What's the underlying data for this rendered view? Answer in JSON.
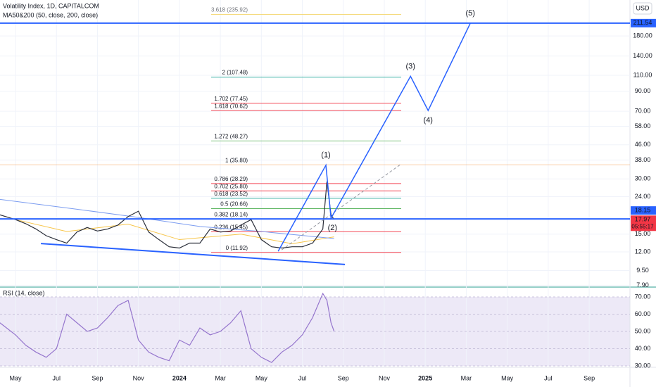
{
  "header": {
    "title": "Volatility Index, 1D, CAPITALCOM",
    "indicator": "MA50&200 (50, close, 200, close)",
    "rsi_title": "RSI (14, close)",
    "currency": "USD",
    "countdown": "05:55:17"
  },
  "chart_data": {
    "type": "line",
    "log_scale": true,
    "grid": true,
    "ylim": [
      7.72,
      282.7
    ],
    "xlim": [
      -0.756,
      29.99
    ],
    "yticks": [
      {
        "value": 180,
        "label": "180.00"
      },
      {
        "value": 140,
        "label": "140.00"
      },
      {
        "value": 110,
        "label": "110.00"
      },
      {
        "value": 90,
        "label": "90.00"
      },
      {
        "value": 70,
        "label": "70.00"
      },
      {
        "value": 58,
        "label": "58.00"
      },
      {
        "value": 46,
        "label": "46.00"
      },
      {
        "value": 38,
        "label": "38.00"
      },
      {
        "value": 30,
        "label": "30.00"
      },
      {
        "value": 24,
        "label": "24.00"
      },
      {
        "value": 15,
        "label": "15.00"
      },
      {
        "value": 12,
        "label": "12.00"
      },
      {
        "value": 9.5,
        "label": "9.50"
      },
      {
        "value": 7.9,
        "label": "7.90"
      }
    ],
    "xticks": [
      {
        "value": 0,
        "label": "May"
      },
      {
        "value": 2,
        "label": "Jul"
      },
      {
        "value": 4,
        "label": "Sep"
      },
      {
        "value": 6,
        "label": "Nov"
      },
      {
        "value": 8,
        "label": "2024"
      },
      {
        "value": 10,
        "label": "Mar"
      },
      {
        "value": 12,
        "label": "May"
      },
      {
        "value": 14,
        "label": "Jul"
      },
      {
        "value": 16,
        "label": "Sep"
      },
      {
        "value": 18,
        "label": "Nov"
      },
      {
        "value": 20,
        "label": "2025"
      },
      {
        "value": 22,
        "label": "Mar"
      },
      {
        "value": 24,
        "label": "May"
      },
      {
        "value": 26,
        "label": "Jul"
      },
      {
        "value": 28,
        "label": "Sep"
      }
    ],
    "price": {
      "color": "#2a2e39",
      "x": [
        -0.76,
        0,
        0.5,
        1,
        1.5,
        2,
        2.5,
        3,
        3.5,
        4,
        4.5,
        5,
        5.5,
        6,
        6.5,
        7,
        7.5,
        8,
        8.5,
        9,
        9.5,
        10,
        10.5,
        11,
        11.5,
        12,
        12.5,
        13,
        13.5,
        14,
        14.5,
        15,
        15.2,
        15.4,
        15.55
      ],
      "values": [
        19.1,
        18.0,
        17.1,
        16.0,
        14.7,
        14.0,
        13.4,
        15.4,
        16.3,
        15.6,
        16.0,
        16.8,
        18.7,
        20.0,
        15.4,
        14.0,
        12.8,
        12.6,
        13.4,
        13.4,
        16.0,
        15.4,
        15.6,
        16.8,
        18.0,
        14.0,
        12.8,
        12.6,
        12.8,
        12.8,
        13.4,
        16.0,
        29.0,
        19.1,
        18.0
      ]
    },
    "moving_averages": [
      {
        "color": "#f7c548",
        "x": [
          0,
          2.5,
          5.5,
          8,
          11,
          13.5,
          15.55
        ],
        "values": [
          18.0,
          15.5,
          17.0,
          14.0,
          15.0,
          13.3,
          14.5
        ]
      },
      {
        "color": "#7b9cf0",
        "x": [
          -0.76,
          3,
          6,
          9,
          12,
          15.55
        ],
        "values": [
          23.2,
          20.5,
          18.5,
          16.5,
          15.5,
          14.2
        ]
      }
    ],
    "fib_levels": [
      {
        "label": "3.618 (235.92)",
        "value": 235.92,
        "color": "#f5d76e"
      },
      {
        "label": "2 (107.48)",
        "value": 107.48,
        "color": "#22a699"
      },
      {
        "label": "1.702 (77.45)",
        "value": 77.45,
        "color": "#f23645"
      },
      {
        "label": "1.618 (70.62)",
        "value": 70.62,
        "color": "#f23645"
      },
      {
        "label": "1.272 (48.27)",
        "value": 48.27,
        "color": "#7ec47e"
      },
      {
        "label": "1 (35.80)",
        "value": 35.8,
        "color": "#f5a25d"
      },
      {
        "label": "0.786 (28.29)",
        "value": 28.29,
        "color": "#f23645"
      },
      {
        "label": "0.702 (25.80)",
        "value": 25.8,
        "color": "#f23645"
      },
      {
        "label": "0.618 (23.52)",
        "value": 23.52,
        "color": "#22a699"
      },
      {
        "label": "0.5 (20.66)",
        "value": 20.66,
        "color": "#4caf50"
      },
      {
        "label": "0.382 (18.14)",
        "value": 18.14,
        "color": "#f23645"
      },
      {
        "label": "0.236 (15.45)",
        "value": 15.45,
        "color": "#f23645"
      },
      {
        "label": "0 (11.92)",
        "value": 11.92,
        "color": "#f23645"
      }
    ],
    "wave": {
      "color": "#2962ff",
      "x": [
        12.82,
        15.15,
        15.4,
        19.28,
        20.14,
        22.2
      ],
      "values": [
        12.1,
        35.6,
        18.3,
        108.6,
        70.7,
        211.4
      ],
      "labels": [
        null,
        "(1)",
        "(2)",
        "(3)",
        "(4)",
        "(5)"
      ]
    },
    "support": {
      "color": "#2962ff",
      "x": [
        1.24,
        16.08
      ],
      "values": [
        13.33,
        10.25
      ]
    },
    "trend": {
      "color": "#9598a1",
      "x": [
        12.99,
        18.83
      ],
      "values": [
        12.3,
        36.2
      ]
    },
    "price_labels": [
      {
        "value": 211.54,
        "color": "#2962ff"
      },
      {
        "value": 18.15,
        "color": "#2962ff"
      },
      {
        "value": 17.97,
        "color": "#f23645"
      }
    ],
    "rsi": {
      "color": "#9575cd",
      "ylim": [
        29.2,
        75.7
      ],
      "yticks": [
        {
          "value": 70,
          "label": "70.00"
        },
        {
          "value": 60,
          "label": "60.00"
        },
        {
          "value": 50,
          "label": "50.00"
        },
        {
          "value": 40,
          "label": "40.00"
        },
        {
          "value": 30,
          "label": "30.00"
        }
      ],
      "values": [
        55,
        48,
        42,
        38,
        35,
        40,
        60,
        55,
        50,
        52,
        58,
        65,
        68,
        45,
        38,
        35,
        33,
        45,
        42,
        52,
        48,
        50,
        55,
        62,
        40,
        35,
        32,
        38,
        42,
        48,
        58,
        72,
        68,
        55,
        50
      ]
    }
  }
}
